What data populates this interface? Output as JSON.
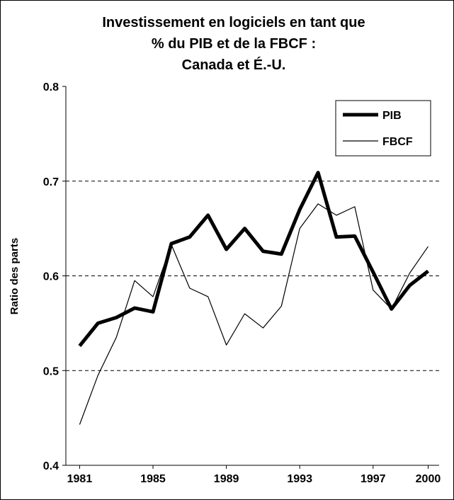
{
  "chart_data": {
    "type": "line",
    "title": [
      "Investissement en logiciels en tant que",
      "% du PIB et de la FBCF :",
      "Canada et É.-U."
    ],
    "y_label": "Ratio des parts",
    "x": [
      1981,
      1982,
      1983,
      1984,
      1985,
      1986,
      1987,
      1988,
      1989,
      1990,
      1991,
      1992,
      1993,
      1994,
      1995,
      1996,
      1997,
      1998,
      1999,
      2000
    ],
    "series": [
      {
        "name": "PIB",
        "color": "#000000",
        "values": [
          0.526,
          0.55,
          0.556,
          0.566,
          0.562,
          0.634,
          0.641,
          0.664,
          0.628,
          0.65,
          0.626,
          0.623,
          0.67,
          0.709,
          0.641,
          0.642,
          0.604,
          0.565,
          0.59,
          0.605
        ]
      },
      {
        "name": "FBCF",
        "color": "#000000",
        "values": [
          0.443,
          0.495,
          0.535,
          0.595,
          0.578,
          0.633,
          0.587,
          0.578,
          0.527,
          0.56,
          0.545,
          0.568,
          0.65,
          0.676,
          0.664,
          0.673,
          0.585,
          0.565,
          0.603,
          0.631
        ]
      }
    ],
    "xlim": [
      1980.25,
      2000.6
    ],
    "xticks": [
      1981,
      1985,
      1989,
      1993,
      1997,
      2000
    ],
    "ylim": [
      0.4,
      0.8
    ],
    "yticks": [
      0.4,
      0.5,
      0.6,
      0.7,
      0.8
    ],
    "grid": true,
    "legend": "top-right"
  }
}
